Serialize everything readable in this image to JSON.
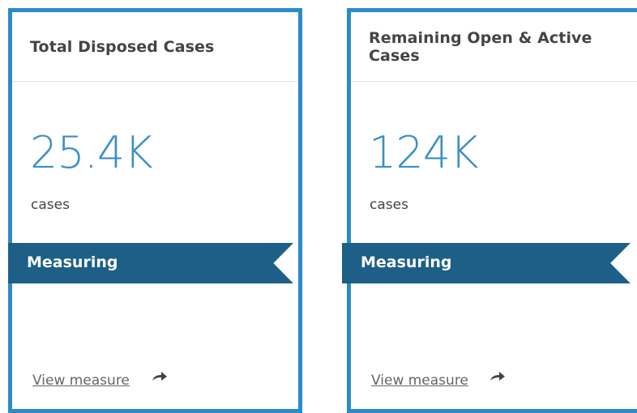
{
  "cards": [
    {
      "title": "Total Disposed Cases",
      "value": "25.4K",
      "unit": "cases",
      "ribbon": "Measuring",
      "link": "View measure"
    },
    {
      "title": "Remaining Open & Active Cases",
      "value": "124K",
      "unit": "cases",
      "ribbon": "Measuring",
      "link": "View measure"
    }
  ]
}
